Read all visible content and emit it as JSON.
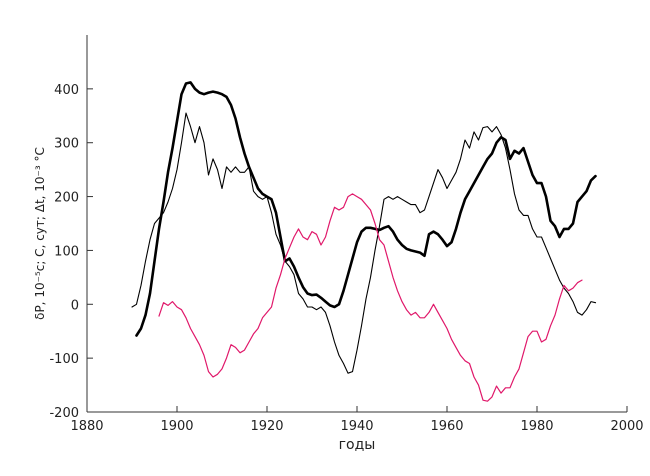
{
  "chart_data": {
    "type": "line",
    "title": "",
    "xlabel": "годы",
    "ylabel": "δP, 10⁻⁵c; C, сут; Δt, 10⁻³ °C",
    "xlim": [
      1880,
      2000
    ],
    "ylim": [
      -200,
      500
    ],
    "x_ticks": [
      1880,
      1900,
      1920,
      1940,
      1960,
      1980,
      2000
    ],
    "y_ticks": [
      -200,
      -100,
      0,
      100,
      200,
      300,
      400
    ],
    "grid": false,
    "legend": "none",
    "series": [
      {
        "color": "#000000",
        "width": 2.6,
        "points": [
          [
            1891,
            -58
          ],
          [
            1892,
            -45
          ],
          [
            1893,
            -20
          ],
          [
            1894,
            20
          ],
          [
            1895,
            80
          ],
          [
            1896,
            140
          ],
          [
            1897,
            190
          ],
          [
            1898,
            245
          ],
          [
            1899,
            290
          ],
          [
            1900,
            340
          ],
          [
            1901,
            390
          ],
          [
            1902,
            410
          ],
          [
            1903,
            412
          ],
          [
            1904,
            400
          ],
          [
            1905,
            393
          ],
          [
            1906,
            390
          ],
          [
            1907,
            393
          ],
          [
            1908,
            395
          ],
          [
            1909,
            393
          ],
          [
            1910,
            390
          ],
          [
            1911,
            385
          ],
          [
            1912,
            370
          ],
          [
            1913,
            345
          ],
          [
            1914,
            310
          ],
          [
            1915,
            280
          ],
          [
            1916,
            255
          ],
          [
            1917,
            235
          ],
          [
            1918,
            215
          ],
          [
            1919,
            205
          ],
          [
            1920,
            200
          ],
          [
            1921,
            195
          ],
          [
            1922,
            170
          ],
          [
            1923,
            125
          ],
          [
            1924,
            80
          ],
          [
            1925,
            85
          ],
          [
            1926,
            70
          ],
          [
            1927,
            50
          ],
          [
            1928,
            32
          ],
          [
            1929,
            20
          ],
          [
            1930,
            17
          ],
          [
            1931,
            18
          ],
          [
            1932,
            12
          ],
          [
            1933,
            5
          ],
          [
            1934,
            -2
          ],
          [
            1935,
            -5
          ],
          [
            1936,
            0
          ],
          [
            1937,
            25
          ],
          [
            1938,
            55
          ],
          [
            1939,
            85
          ],
          [
            1940,
            115
          ],
          [
            1941,
            135
          ],
          [
            1942,
            142
          ],
          [
            1943,
            142
          ],
          [
            1944,
            140
          ],
          [
            1945,
            138
          ],
          [
            1946,
            142
          ],
          [
            1947,
            145
          ],
          [
            1948,
            135
          ],
          [
            1949,
            120
          ],
          [
            1950,
            110
          ],
          [
            1951,
            103
          ],
          [
            1952,
            100
          ],
          [
            1953,
            98
          ],
          [
            1954,
            96
          ],
          [
            1955,
            90
          ],
          [
            1956,
            130
          ],
          [
            1957,
            135
          ],
          [
            1958,
            130
          ],
          [
            1959,
            120
          ],
          [
            1960,
            108
          ],
          [
            1961,
            115
          ],
          [
            1962,
            140
          ],
          [
            1963,
            170
          ],
          [
            1964,
            195
          ],
          [
            1965,
            210
          ],
          [
            1966,
            225
          ],
          [
            1967,
            240
          ],
          [
            1968,
            255
          ],
          [
            1969,
            270
          ],
          [
            1970,
            280
          ],
          [
            1971,
            300
          ],
          [
            1972,
            310
          ],
          [
            1973,
            305
          ],
          [
            1974,
            270
          ],
          [
            1975,
            285
          ],
          [
            1976,
            280
          ],
          [
            1977,
            290
          ],
          [
            1978,
            265
          ],
          [
            1979,
            240
          ],
          [
            1980,
            225
          ],
          [
            1981,
            225
          ],
          [
            1982,
            200
          ],
          [
            1983,
            155
          ],
          [
            1984,
            145
          ],
          [
            1985,
            125
          ],
          [
            1986,
            140
          ],
          [
            1987,
            140
          ],
          [
            1988,
            150
          ],
          [
            1989,
            190
          ],
          [
            1990,
            200
          ],
          [
            1991,
            210
          ],
          [
            1992,
            230
          ],
          [
            1993,
            238
          ]
        ]
      },
      {
        "color": "#000000",
        "width": 1.1,
        "points": [
          [
            1890,
            -5
          ],
          [
            1891,
            0
          ],
          [
            1892,
            35
          ],
          [
            1893,
            80
          ],
          [
            1894,
            120
          ],
          [
            1895,
            150
          ],
          [
            1896,
            160
          ],
          [
            1897,
            170
          ],
          [
            1898,
            190
          ],
          [
            1899,
            215
          ],
          [
            1900,
            250
          ],
          [
            1901,
            300
          ],
          [
            1902,
            355
          ],
          [
            1903,
            330
          ],
          [
            1904,
            300
          ],
          [
            1905,
            330
          ],
          [
            1906,
            300
          ],
          [
            1907,
            240
          ],
          [
            1908,
            270
          ],
          [
            1909,
            250
          ],
          [
            1910,
            215
          ],
          [
            1911,
            255
          ],
          [
            1912,
            245
          ],
          [
            1913,
            255
          ],
          [
            1914,
            245
          ],
          [
            1915,
            245
          ],
          [
            1916,
            255
          ],
          [
            1917,
            210
          ],
          [
            1918,
            200
          ],
          [
            1919,
            195
          ],
          [
            1920,
            200
          ],
          [
            1921,
            170
          ],
          [
            1922,
            130
          ],
          [
            1923,
            110
          ],
          [
            1924,
            80
          ],
          [
            1925,
            70
          ],
          [
            1926,
            55
          ],
          [
            1927,
            20
          ],
          [
            1928,
            10
          ],
          [
            1929,
            -5
          ],
          [
            1930,
            -5
          ],
          [
            1931,
            -10
          ],
          [
            1932,
            -5
          ],
          [
            1933,
            -15
          ],
          [
            1934,
            -40
          ],
          [
            1935,
            -70
          ],
          [
            1936,
            -95
          ],
          [
            1937,
            -110
          ],
          [
            1938,
            -128
          ],
          [
            1939,
            -125
          ],
          [
            1940,
            -85
          ],
          [
            1941,
            -40
          ],
          [
            1942,
            10
          ],
          [
            1943,
            50
          ],
          [
            1944,
            100
          ],
          [
            1945,
            145
          ],
          [
            1946,
            195
          ],
          [
            1947,
            200
          ],
          [
            1948,
            195
          ],
          [
            1949,
            200
          ],
          [
            1950,
            195
          ],
          [
            1951,
            190
          ],
          [
            1952,
            185
          ],
          [
            1953,
            185
          ],
          [
            1954,
            170
          ],
          [
            1955,
            175
          ],
          [
            1956,
            200
          ],
          [
            1957,
            225
          ],
          [
            1958,
            250
          ],
          [
            1959,
            235
          ],
          [
            1960,
            215
          ],
          [
            1961,
            230
          ],
          [
            1962,
            245
          ],
          [
            1963,
            270
          ],
          [
            1964,
            305
          ],
          [
            1965,
            290
          ],
          [
            1966,
            320
          ],
          [
            1967,
            305
          ],
          [
            1968,
            328
          ],
          [
            1969,
            330
          ],
          [
            1970,
            320
          ],
          [
            1971,
            330
          ],
          [
            1972,
            315
          ],
          [
            1973,
            290
          ],
          [
            1974,
            250
          ],
          [
            1975,
            205
          ],
          [
            1976,
            175
          ],
          [
            1977,
            165
          ],
          [
            1978,
            165
          ],
          [
            1979,
            140
          ],
          [
            1980,
            125
          ],
          [
            1981,
            125
          ],
          [
            1982,
            105
          ],
          [
            1983,
            85
          ],
          [
            1984,
            65
          ],
          [
            1985,
            45
          ],
          [
            1986,
            30
          ],
          [
            1987,
            20
          ],
          [
            1988,
            5
          ],
          [
            1989,
            -15
          ],
          [
            1990,
            -20
          ],
          [
            1991,
            -10
          ],
          [
            1992,
            5
          ],
          [
            1993,
            3
          ]
        ]
      },
      {
        "color": "#e0186a",
        "width": 1.2,
        "points": [
          [
            1896,
            -22
          ],
          [
            1897,
            3
          ],
          [
            1898,
            -2
          ],
          [
            1899,
            5
          ],
          [
            1900,
            -5
          ],
          [
            1901,
            -10
          ],
          [
            1902,
            -25
          ],
          [
            1903,
            -45
          ],
          [
            1904,
            -60
          ],
          [
            1905,
            -75
          ],
          [
            1906,
            -95
          ],
          [
            1907,
            -125
          ],
          [
            1908,
            -135
          ],
          [
            1909,
            -130
          ],
          [
            1910,
            -120
          ],
          [
            1911,
            -100
          ],
          [
            1912,
            -75
          ],
          [
            1913,
            -80
          ],
          [
            1914,
            -90
          ],
          [
            1915,
            -85
          ],
          [
            1916,
            -70
          ],
          [
            1917,
            -55
          ],
          [
            1918,
            -45
          ],
          [
            1919,
            -25
          ],
          [
            1920,
            -15
          ],
          [
            1921,
            -5
          ],
          [
            1922,
            30
          ],
          [
            1923,
            55
          ],
          [
            1924,
            85
          ],
          [
            1925,
            105
          ],
          [
            1926,
            125
          ],
          [
            1927,
            140
          ],
          [
            1928,
            125
          ],
          [
            1929,
            120
          ],
          [
            1930,
            135
          ],
          [
            1931,
            130
          ],
          [
            1932,
            110
          ],
          [
            1933,
            125
          ],
          [
            1934,
            155
          ],
          [
            1935,
            180
          ],
          [
            1936,
            175
          ],
          [
            1937,
            180
          ],
          [
            1938,
            200
          ],
          [
            1939,
            205
          ],
          [
            1940,
            200
          ],
          [
            1941,
            195
          ],
          [
            1942,
            185
          ],
          [
            1943,
            175
          ],
          [
            1944,
            150
          ],
          [
            1945,
            120
          ],
          [
            1946,
            110
          ],
          [
            1947,
            80
          ],
          [
            1948,
            50
          ],
          [
            1949,
            25
          ],
          [
            1950,
            5
          ],
          [
            1951,
            -10
          ],
          [
            1952,
            -20
          ],
          [
            1953,
            -15
          ],
          [
            1954,
            -25
          ],
          [
            1955,
            -25
          ],
          [
            1956,
            -15
          ],
          [
            1957,
            0
          ],
          [
            1958,
            -15
          ],
          [
            1959,
            -30
          ],
          [
            1960,
            -45
          ],
          [
            1961,
            -65
          ],
          [
            1962,
            -80
          ],
          [
            1963,
            -95
          ],
          [
            1964,
            -105
          ],
          [
            1965,
            -110
          ],
          [
            1966,
            -135
          ],
          [
            1967,
            -150
          ],
          [
            1968,
            -178
          ],
          [
            1969,
            -180
          ],
          [
            1970,
            -172
          ],
          [
            1971,
            -152
          ],
          [
            1972,
            -165
          ],
          [
            1973,
            -155
          ],
          [
            1974,
            -155
          ],
          [
            1975,
            -135
          ],
          [
            1976,
            -120
          ],
          [
            1977,
            -90
          ],
          [
            1978,
            -60
          ],
          [
            1979,
            -50
          ],
          [
            1980,
            -50
          ],
          [
            1981,
            -70
          ],
          [
            1982,
            -65
          ],
          [
            1983,
            -40
          ],
          [
            1984,
            -20
          ],
          [
            1985,
            10
          ],
          [
            1986,
            35
          ],
          [
            1987,
            25
          ],
          [
            1988,
            30
          ],
          [
            1989,
            40
          ],
          [
            1990,
            45
          ]
        ]
      }
    ]
  }
}
